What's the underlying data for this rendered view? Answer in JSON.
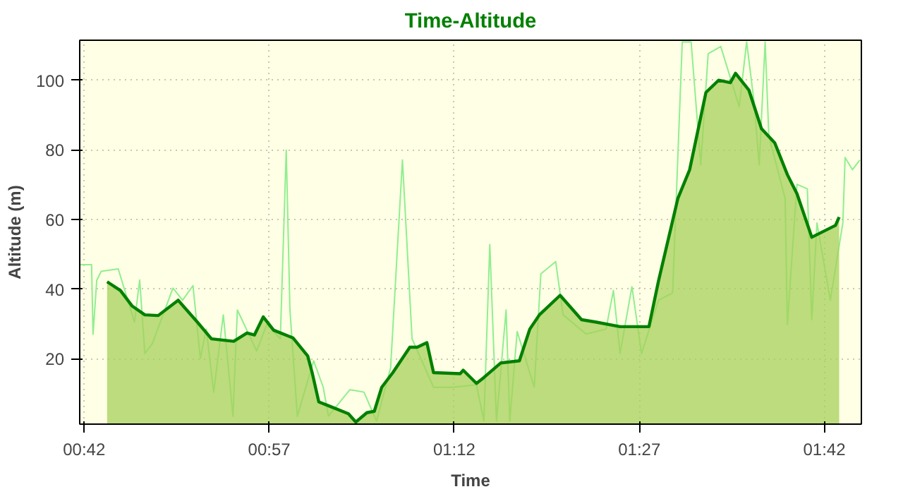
{
  "chart_data": {
    "type": "area",
    "title": "Time-Altitude",
    "xlabel": "Time",
    "ylabel": "Altitude (m)",
    "xlim": [
      0.694,
      1.75
    ],
    "ylim": [
      1.2,
      111.5
    ],
    "xticks": [
      {
        "value": 0.7,
        "label": "00:42"
      },
      {
        "value": 0.95,
        "label": "00:57"
      },
      {
        "value": 1.2,
        "label": "01:12"
      },
      {
        "value": 1.45,
        "label": "01:27"
      },
      {
        "value": 1.7,
        "label": "01:42"
      }
    ],
    "yticks": [
      20,
      40,
      60,
      80,
      100
    ],
    "grid": true,
    "series": [
      {
        "type": "line",
        "color": "#90ee90",
        "x": [
          0.694,
          0.71,
          0.712,
          0.717,
          0.723,
          0.746,
          0.768,
          0.775,
          0.782,
          0.792,
          0.82,
          0.833,
          0.847,
          0.857,
          0.865,
          0.875,
          0.888,
          0.901,
          0.907,
          0.933,
          0.947,
          0.965,
          0.973,
          0.978,
          0.988,
          1.01,
          1.023,
          1.03,
          1.059,
          1.078,
          1.095,
          1.114,
          1.13,
          1.143,
          1.172,
          1.198,
          1.23,
          1.24,
          1.248,
          1.257,
          1.27,
          1.275,
          1.285,
          1.308,
          1.317,
          1.337,
          1.347,
          1.378,
          1.405,
          1.415,
          1.424,
          1.44,
          1.453,
          1.476,
          1.495,
          1.508,
          1.52,
          1.533,
          1.543,
          1.56,
          1.585,
          1.595,
          1.605,
          1.612,
          1.62,
          1.625,
          1.647,
          1.65,
          1.663,
          1.677,
          1.683,
          1.69,
          1.708,
          1.725,
          1.728,
          1.738,
          1.748
        ],
        "values": [
          47,
          47,
          27,
          42.5,
          45.1,
          45.8,
          30.5,
          42.6,
          21.5,
          24.3,
          40.3,
          36.8,
          41.0,
          20.1,
          28.5,
          10.4,
          32.6,
          3.5,
          34,
          22.2,
          29.9,
          25.7,
          79.9,
          34,
          3.5,
          19.4,
          11.8,
          3.5,
          11.1,
          10.4,
          2.1,
          17.4,
          77.1,
          25.7,
          11.8,
          11.8,
          12.5,
          2.1,
          52.8,
          2.1,
          34,
          2.1,
          27.8,
          11.8,
          44.4,
          47.9,
          32.6,
          27.1,
          28.5,
          39.6,
          21.5,
          40.7,
          21.5,
          36.8,
          38.9,
          111,
          111,
          75.7,
          107.6,
          109.7,
          92.4,
          111,
          93.8,
          75.7,
          111,
          84,
          66,
          29.9,
          70.1,
          68.8,
          31.2,
          59,
          36.8,
          59,
          77.8,
          74.3,
          77.1
        ]
      },
      {
        "color": "#008000",
        "x": [
          0.731,
          0.749,
          0.765,
          0.782,
          0.8,
          0.827,
          0.853,
          0.872,
          0.902,
          0.92,
          0.93,
          0.942,
          0.956,
          0.982,
          1.002,
          1.008,
          1.017,
          1.03,
          1.057,
          1.067,
          1.082,
          1.092,
          1.102,
          1.117,
          1.14,
          1.15,
          1.163,
          1.172,
          1.208,
          1.212,
          1.23,
          1.24,
          1.263,
          1.288,
          1.302,
          1.315,
          1.343,
          1.372,
          1.392,
          1.424,
          1.463,
          1.476,
          1.502,
          1.518,
          1.54,
          1.557,
          1.573,
          1.58,
          1.598,
          1.615,
          1.633,
          1.65,
          1.663,
          1.683,
          1.715,
          1.72
        ],
        "values": [
          42.1,
          39.6,
          35.1,
          32.6,
          32.4,
          36.8,
          30.5,
          25.7,
          25.0,
          27.4,
          26.8,
          32.0,
          28.2,
          26.0,
          20.8,
          16.0,
          7.6,
          6.5,
          4.2,
          1.8,
          4.5,
          4.9,
          11.8,
          16.0,
          23.3,
          23.3,
          24.6,
          16.0,
          15.7,
          16.7,
          12.9,
          14.6,
          18.8,
          19.4,
          28.5,
          32.6,
          38.2,
          31.2,
          30.5,
          29.2,
          29.2,
          42.4,
          66.0,
          74.3,
          96.5,
          100,
          99.3,
          102,
          97.2,
          86.1,
          82.0,
          72.9,
          67.4,
          54.9,
          58.3,
          60.7
        ]
      }
    ]
  }
}
